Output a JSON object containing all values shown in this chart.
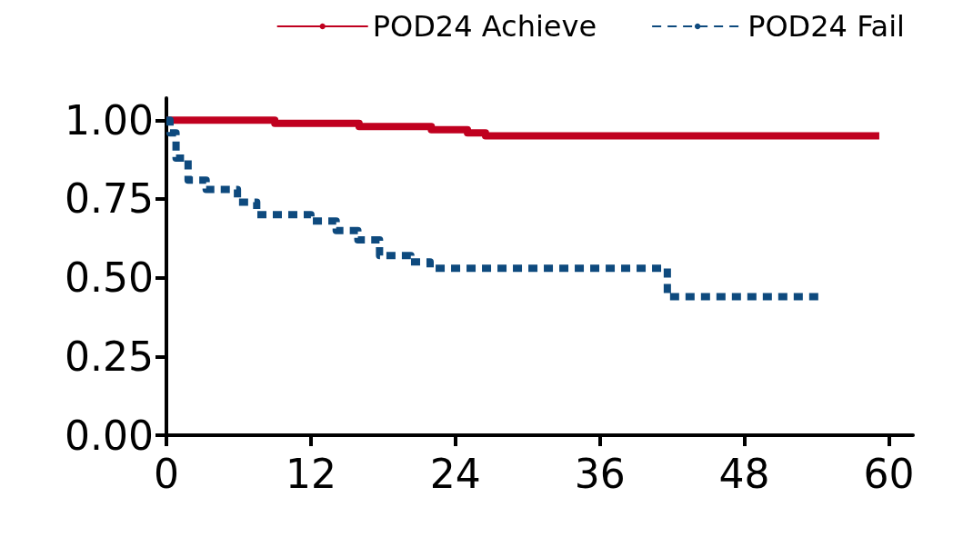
{
  "chart_data": {
    "type": "step",
    "series": [
      {
        "name": "POD24 Achieve",
        "color": "#c0001f",
        "line_style": "solid",
        "x": [
          0,
          9,
          16,
          22,
          25,
          26.5,
          59.2
        ],
        "values": [
          1,
          0.99,
          0.98,
          0.97,
          0.96,
          0.95,
          0.95
        ]
      },
      {
        "name": "POD24 Fail",
        "color": "#0e4a7e",
        "line_style": "dashed",
        "x": [
          0,
          0.3,
          0.8,
          1.8,
          3.3,
          5.9,
          7.5,
          12,
          14.1,
          15.9,
          17.7,
          20.3,
          21.9,
          41.6,
          54.4
        ],
        "values": [
          1,
          0.96,
          0.88,
          0.81,
          0.78,
          0.74,
          0.7,
          0.68,
          0.65,
          0.62,
          0.57,
          0.55,
          0.53,
          0.44,
          0.44
        ]
      }
    ],
    "xlim": [
      0,
      62
    ],
    "xticks": [
      0,
      12,
      24,
      36,
      48,
      60
    ],
    "ylim": [
      0,
      1.07
    ],
    "yticks": [
      {
        "value": 0,
        "label": "0.00"
      },
      {
        "value": 0.25,
        "label": "0.25"
      },
      {
        "value": 0.5,
        "label": "0.50"
      },
      {
        "value": 0.75,
        "label": "0.75"
      },
      {
        "value": 1,
        "label": "1.00"
      }
    ],
    "grid": false,
    "legend": "top right",
    "marker": "none"
  }
}
